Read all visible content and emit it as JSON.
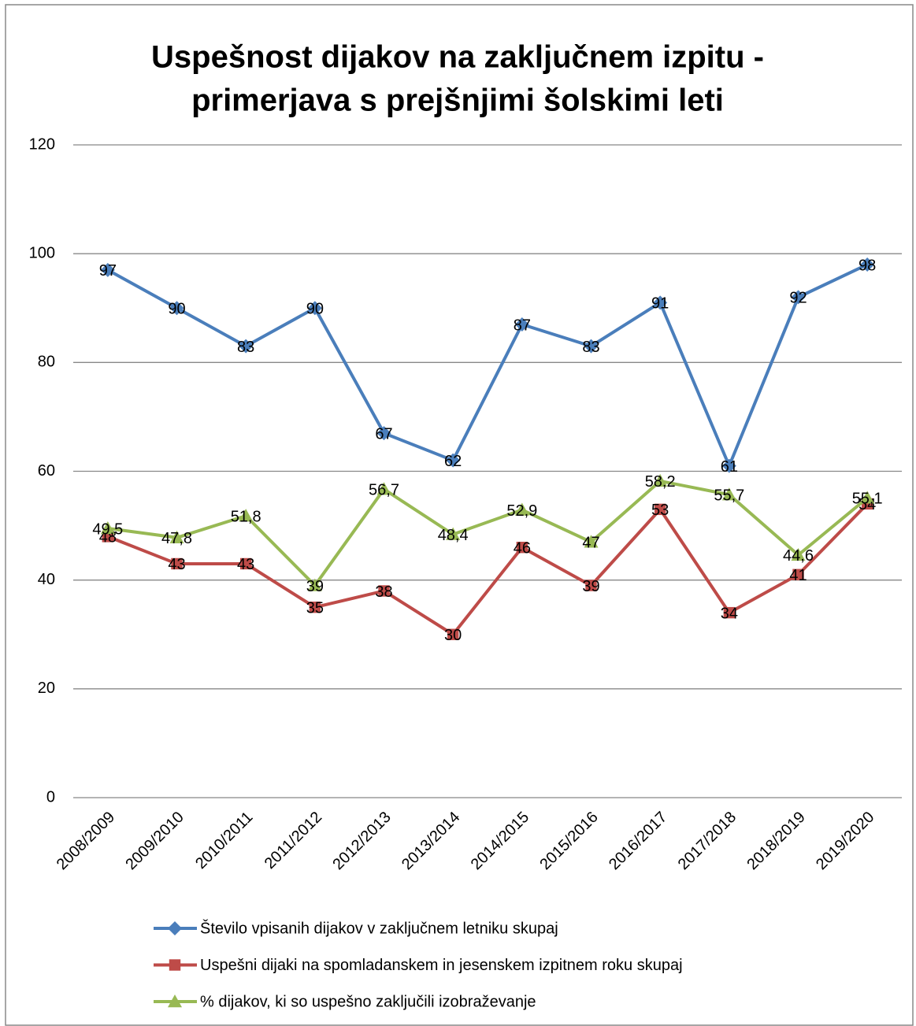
{
  "chart_data": {
    "type": "line",
    "title_lines": [
      "Uspešnost dijakov na zaključnem izpitu -",
      "primerjava s prejšnjimi šolskimi leti"
    ],
    "categories": [
      "2008/2009",
      "2009/2010",
      "2010/2011",
      "2011/2012",
      "2012/2013",
      "2013/2014",
      "2014/2015",
      "2015/2016",
      "2016/2017",
      "2017/2018",
      "2018/2019",
      "2019/2020"
    ],
    "series": [
      {
        "name": "Število vpisanih dijakov v zaključnem letniku skupaj",
        "color": "#4a7ebb",
        "marker": "diamond",
        "values": [
          97,
          90,
          83,
          90,
          67,
          62,
          87,
          83,
          91,
          61,
          92,
          98
        ]
      },
      {
        "name": "Uspešni dijaki na spomladanskem in jesenskem izpitnem roku skupaj",
        "color": "#be4b48",
        "marker": "square",
        "values": [
          48,
          43,
          43,
          35,
          38,
          30,
          46,
          39,
          53,
          34,
          41,
          54
        ]
      },
      {
        "name": "% dijakov, ki so uspešno zaključili izobraževanje",
        "color": "#98b954",
        "marker": "triangle",
        "values": [
          49.5,
          47.8,
          51.8,
          39,
          56.7,
          48.4,
          52.9,
          47,
          58.2,
          55.7,
          44.6,
          55.1
        ],
        "value_labels": [
          "49,5",
          "47,8",
          "51,8",
          "39",
          "56,7",
          "48,4",
          "52,9",
          "47",
          "58,2",
          "55,7",
          "44,6",
          "55,1"
        ]
      }
    ],
    "ylim": [
      0,
      120
    ],
    "yticks": [
      0,
      20,
      40,
      60,
      80,
      100,
      120
    ],
    "grid": true,
    "legend": "bottom"
  }
}
